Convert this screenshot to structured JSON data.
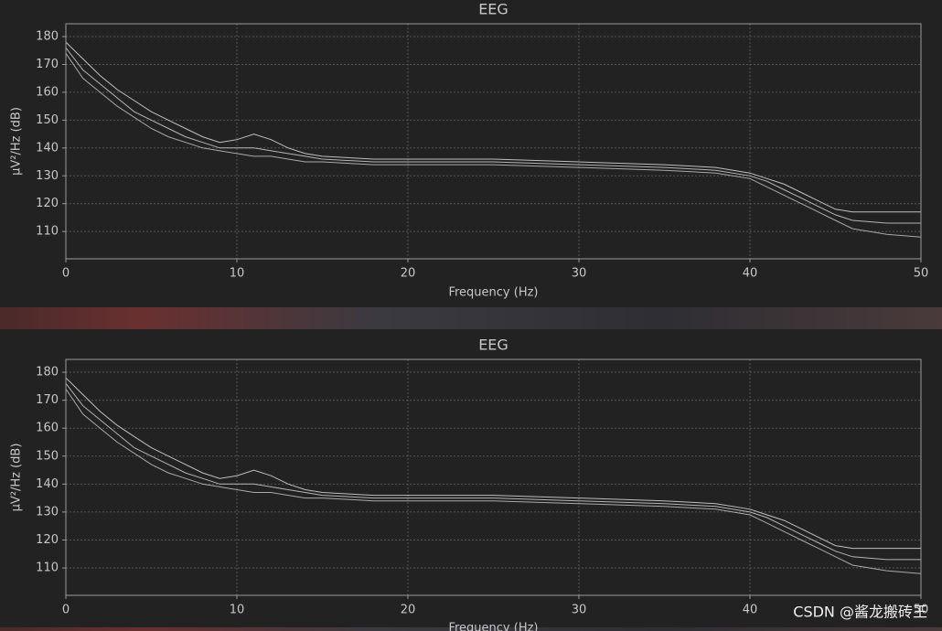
{
  "chart_data": [
    {
      "type": "line",
      "title": "EEG",
      "x_label": "Frequency (Hz)",
      "y_label": "µV²/Hz (dB)",
      "x": [
        0,
        1,
        2,
        3,
        4,
        5,
        6,
        7,
        8,
        9,
        10,
        11,
        12,
        13,
        14,
        15,
        18,
        20,
        25,
        30,
        35,
        38,
        40,
        41,
        42,
        43,
        44,
        45,
        46,
        48,
        50
      ],
      "series": [
        {
          "color": "#d0d0d0",
          "values": [
            178,
            172,
            166,
            161,
            157,
            153,
            150,
            147,
            144,
            142,
            143,
            145,
            143,
            140,
            138,
            137,
            136,
            136,
            136,
            135,
            134,
            133,
            131,
            129,
            127,
            124,
            121,
            118,
            117,
            117,
            117
          ]
        },
        {
          "color": "#c4c4c4",
          "values": [
            176,
            168,
            163,
            158,
            153,
            150,
            147,
            144,
            142,
            140,
            140,
            140,
            139,
            138,
            137,
            136,
            135,
            135,
            135,
            134,
            133,
            132,
            130,
            128,
            125,
            122,
            119,
            116,
            114,
            113,
            113
          ]
        },
        {
          "color": "#b8b8b8",
          "values": [
            174,
            165,
            160,
            155,
            151,
            147,
            144,
            142,
            140,
            139,
            138,
            137,
            137,
            136,
            135,
            135,
            134,
            134,
            134,
            133,
            132,
            131,
            129,
            126,
            123,
            120,
            117,
            114,
            111,
            109,
            108
          ]
        }
      ],
      "xlim": [
        0,
        50
      ],
      "xticks": [
        0,
        10,
        20,
        30,
        40,
        50
      ],
      "ylim": [
        100.2,
        184.6
      ],
      "yticks": [
        110,
        120,
        130,
        140,
        150,
        160,
        170,
        180
      ],
      "grid": true
    },
    {
      "type": "line",
      "title": "EEG",
      "x_label": "Frequency (Hz)",
      "y_label": "µV²/Hz (dB)",
      "x": [
        0,
        1,
        2,
        3,
        4,
        5,
        6,
        7,
        8,
        9,
        10,
        11,
        12,
        13,
        14,
        15,
        18,
        20,
        25,
        30,
        35,
        38,
        40,
        41,
        42,
        43,
        44,
        45,
        46,
        48,
        50
      ],
      "series": [
        {
          "color": "#d0d0d0",
          "values": [
            178,
            172,
            166,
            161,
            157,
            153,
            150,
            147,
            144,
            142,
            143,
            145,
            143,
            140,
            138,
            137,
            136,
            136,
            136,
            135,
            134,
            133,
            131,
            129,
            127,
            124,
            121,
            118,
            117,
            117,
            117
          ]
        },
        {
          "color": "#c4c4c4",
          "values": [
            176,
            168,
            163,
            158,
            153,
            150,
            147,
            144,
            142,
            140,
            140,
            140,
            139,
            138,
            137,
            136,
            135,
            135,
            135,
            134,
            133,
            132,
            130,
            128,
            125,
            122,
            119,
            116,
            114,
            113,
            113
          ]
        },
        {
          "color": "#b8b8b8",
          "values": [
            174,
            165,
            160,
            155,
            151,
            147,
            144,
            142,
            140,
            139,
            138,
            137,
            137,
            136,
            135,
            135,
            134,
            134,
            134,
            133,
            132,
            131,
            129,
            126,
            123,
            120,
            117,
            114,
            111,
            109,
            108
          ]
        }
      ],
      "xlim": [
        0,
        50
      ],
      "xticks": [
        0,
        10,
        20,
        30,
        40,
        50
      ],
      "ylim": [
        100.2,
        184.6
      ],
      "yticks": [
        110,
        120,
        130,
        140,
        150,
        160,
        170,
        180
      ],
      "grid": true
    }
  ],
  "watermark": "CSDN @酱龙搬砖王"
}
